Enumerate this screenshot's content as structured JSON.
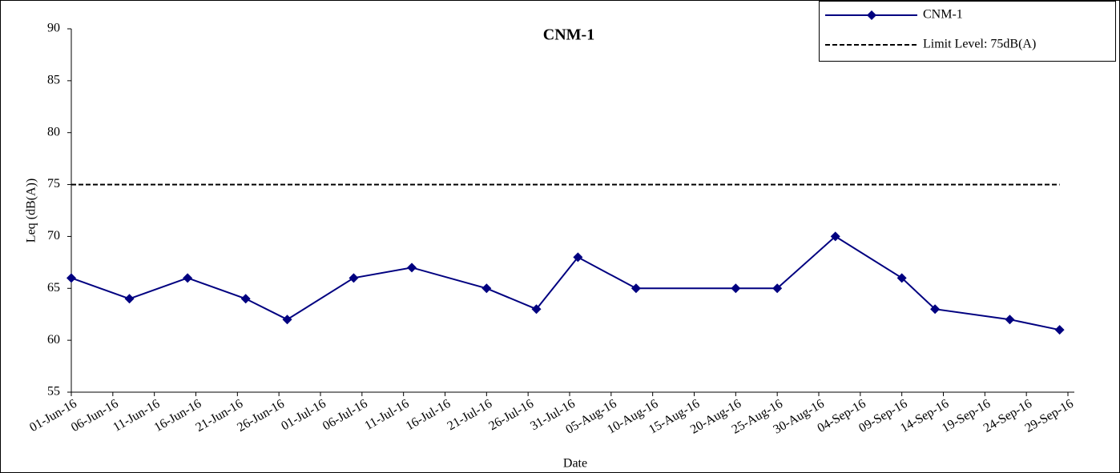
{
  "chart_data": {
    "type": "line",
    "title": "CNM-1",
    "x_label": "Date",
    "y_label": "Leq (dB(A))",
    "x": [
      "01-Jun-16",
      "08-Jun-16",
      "15-Jun-16",
      "22-Jun-16",
      "27-Jun-16",
      "05-Jul-16",
      "12-Jul-16",
      "21-Jul-16",
      "27-Jul-16",
      "01-Aug-16",
      "08-Aug-16",
      "20-Aug-16",
      "25-Aug-16",
      "01-Sep-16",
      "09-Sep-16",
      "13-Sep-16",
      "22-Sep-16",
      "28-Sep-16"
    ],
    "series": [
      {
        "name": "CNM-1",
        "color": "#000080",
        "marker": "diamond",
        "line_style": "solid",
        "values": [
          66,
          64,
          66,
          64,
          62,
          66,
          67,
          65,
          63,
          68,
          65,
          65,
          65,
          70,
          66,
          63,
          62,
          61
        ]
      },
      {
        "name": "Limit Level: 75dB(A)",
        "color": "#000000",
        "marker": "none",
        "line_style": "dashed",
        "values": [
          75,
          75,
          75,
          75,
          75,
          75,
          75,
          75,
          75,
          75,
          75,
          75,
          75,
          75,
          75,
          75,
          75,
          75
        ]
      }
    ],
    "xlim": [
      "01-Jun-16",
      "29-Sep-16"
    ],
    "xticks": [
      "01-Jun-16",
      "06-Jun-16",
      "11-Jun-16",
      "16-Jun-16",
      "21-Jun-16",
      "26-Jun-16",
      "01-Jul-16",
      "06-Jul-16",
      "11-Jul-16",
      "16-Jul-16",
      "21-Jul-16",
      "26-Jul-16",
      "31-Jul-16",
      "05-Aug-16",
      "10-Aug-16",
      "15-Aug-16",
      "20-Aug-16",
      "25-Aug-16",
      "30-Aug-16",
      "04-Sep-16",
      "09-Sep-16",
      "14-Sep-16",
      "19-Sep-16",
      "24-Sep-16",
      "29-Sep-16"
    ],
    "ylim": [
      55,
      90
    ],
    "yticks": [
      55,
      60,
      65,
      70,
      75,
      80,
      85,
      90
    ],
    "grid": false,
    "legend": "top-right"
  }
}
